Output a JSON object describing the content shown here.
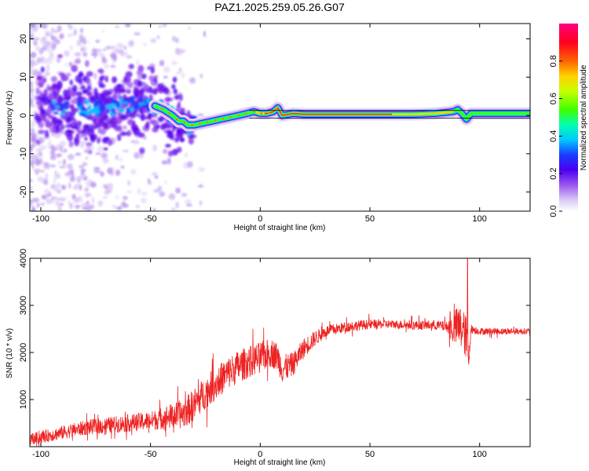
{
  "title": "PAZ1.2025.259.05.26.G07",
  "chart_data": [
    {
      "type": "heatmap",
      "xlabel": "Height of straight line (km)",
      "ylabel": "Frequency (Hz)",
      "xlim": [
        -105,
        123
      ],
      "ylim": [
        -25,
        24
      ],
      "xticks": [
        -100,
        -50,
        0,
        50,
        100
      ],
      "yticks": [
        -20,
        -10,
        0,
        10,
        20
      ],
      "ridge": {
        "description_free": true,
        "x": [
          -105,
          -95,
          -85,
          -75,
          -65,
          -55,
          -48,
          -44,
          -40,
          -37,
          -35,
          -33,
          -30,
          -26,
          -22,
          -18,
          -14,
          -10,
          -6,
          -3,
          0,
          3,
          6,
          8,
          10,
          15,
          20,
          30,
          40,
          50,
          60,
          70,
          80,
          85,
          88,
          90,
          92,
          94,
          96,
          100,
          110,
          123
        ],
        "y": [
          3.5,
          2.5,
          2.0,
          1.5,
          2.5,
          3.0,
          2.5,
          1.5,
          0.0,
          -1.5,
          -1.5,
          -2.5,
          -2.5,
          -2.0,
          -1.5,
          -1.0,
          -0.5,
          0.0,
          0.5,
          1.0,
          0.5,
          0.5,
          1.0,
          2.0,
          0.0,
          0.5,
          0.3,
          0.3,
          0.3,
          0.3,
          0.3,
          0.3,
          0.5,
          0.8,
          1.0,
          1.5,
          0.5,
          -1.0,
          0.5,
          0.5,
          0.5,
          0.5
        ]
      }
    },
    {
      "type": "line",
      "xlabel": "Height of straight line (km)",
      "ylabel": "SNR (10 * v/v)",
      "xlim": [
        -105,
        123
      ],
      "ylim": [
        0,
        4000
      ],
      "xticks": [
        -100,
        -50,
        0,
        50,
        100
      ],
      "yticks": [
        1000,
        2000,
        3000,
        4000
      ],
      "color": "#ee2222",
      "trend": {
        "x": [
          -105,
          -100,
          -90,
          -80,
          -70,
          -60,
          -50,
          -40,
          -35,
          -30,
          -25,
          -20,
          -15,
          -10,
          -5,
          0,
          5,
          8,
          10,
          15,
          20,
          25,
          30,
          40,
          50,
          60,
          70,
          80,
          85,
          88,
          90,
          92,
          94,
          95,
          96,
          100,
          110,
          123
        ],
        "y": [
          150,
          200,
          300,
          400,
          450,
          500,
          550,
          650,
          700,
          900,
          1150,
          1350,
          1550,
          1700,
          1800,
          1900,
          2000,
          1900,
          1650,
          1750,
          2100,
          2300,
          2450,
          2550,
          2600,
          2600,
          2580,
          2580,
          2550,
          2500,
          2550,
          2500,
          2300,
          1800,
          2500,
          2450,
          2450,
          2450
        ]
      },
      "noise": {
        "x": [
          -105,
          -50,
          -30,
          -10,
          10,
          30,
          60,
          85,
          88,
          90,
          92,
          94,
          95,
          96,
          100,
          123
        ],
        "amp": [
          250,
          400,
          700,
          700,
          600,
          250,
          180,
          220,
          700,
          900,
          1000,
          900,
          600,
          200,
          150,
          130
        ]
      },
      "peak": {
        "x": 94.5,
        "y": 4000
      }
    }
  ],
  "colorbar": {
    "label": "Normalized spectral amplitude",
    "ticks": [
      "0.0",
      "0.2",
      "0.4",
      "0.6",
      "0.8"
    ],
    "tick_values": [
      0.0,
      0.2,
      0.4,
      0.6,
      0.8
    ],
    "range": [
      0,
      1
    ],
    "colors": [
      "#ffffff",
      "#d9c8f5",
      "#b07ef0",
      "#7d1fe8",
      "#4a00f0",
      "#1a3cff",
      "#00c8ff",
      "#00ffb0",
      "#40ff00",
      "#c8ff00",
      "#ffd200",
      "#ff6400",
      "#ff0020",
      "#ff0080"
    ]
  }
}
